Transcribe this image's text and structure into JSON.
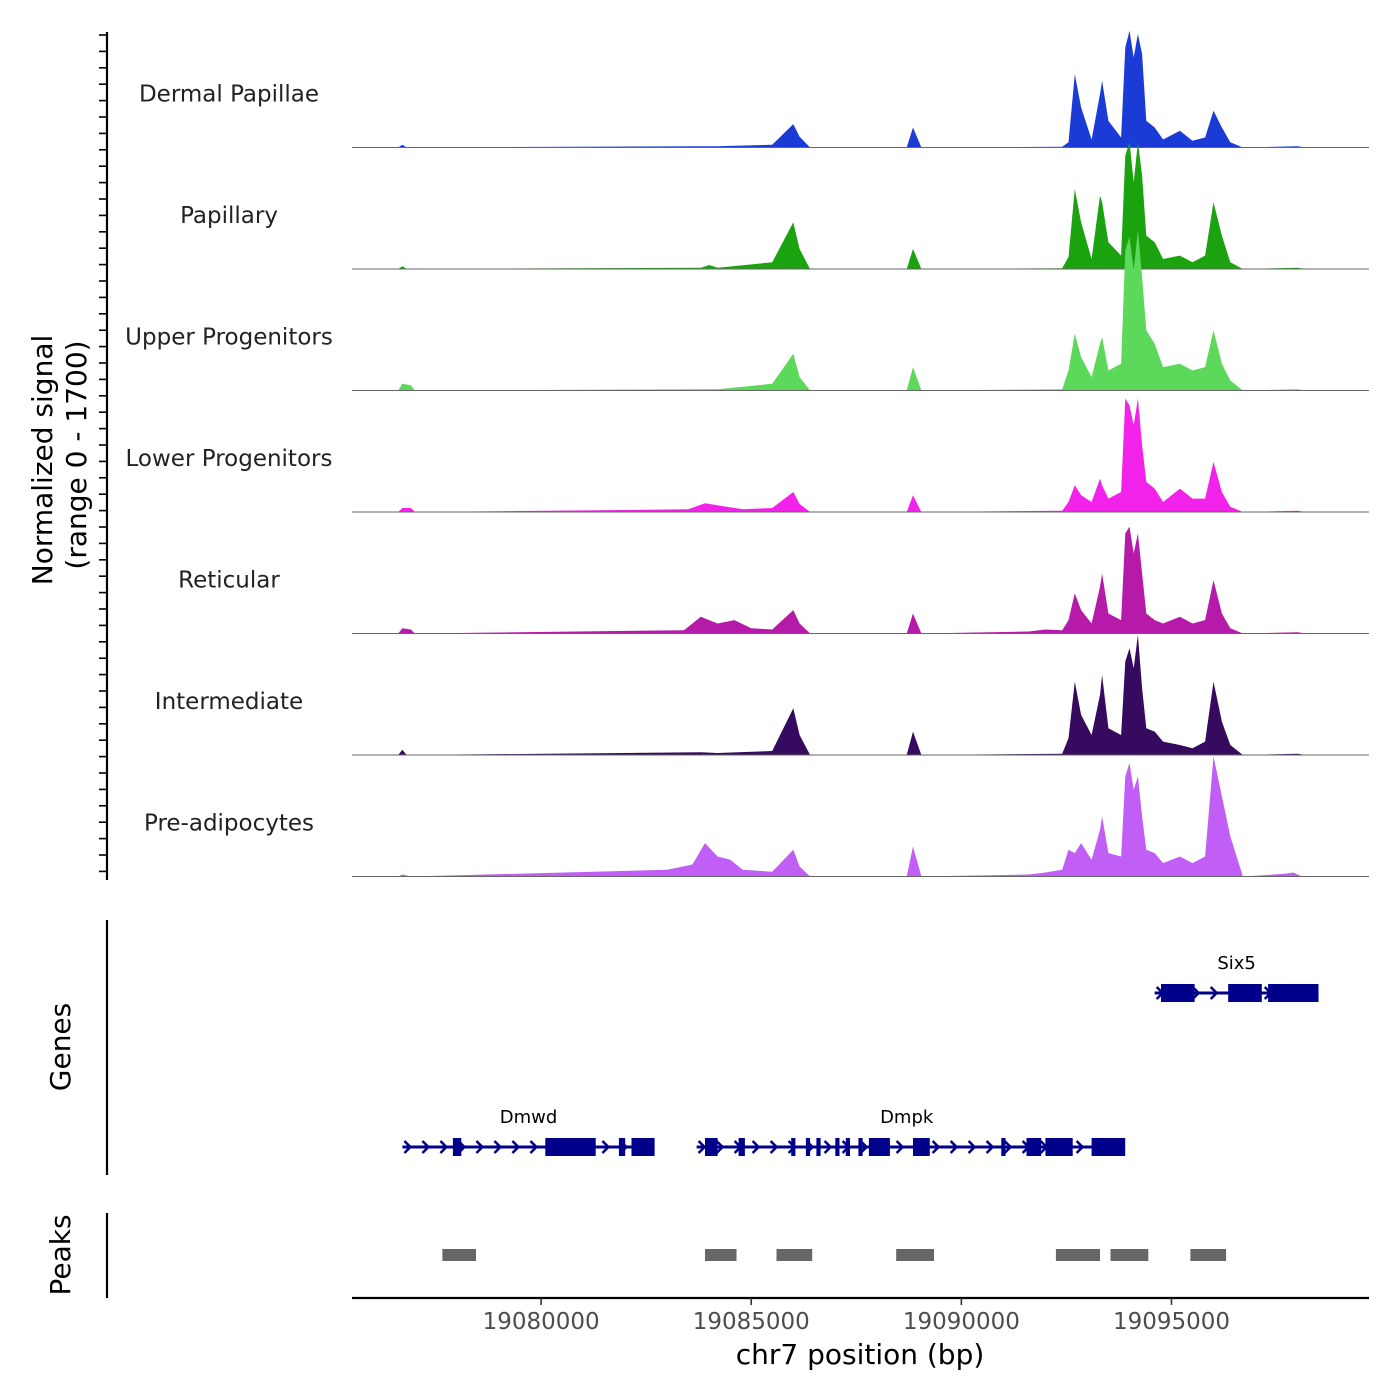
{
  "chart_data": {
    "type": "area",
    "chromosome": "chr7",
    "xlabel": "chr7 position (bp)",
    "xlim": [
      19075500,
      19099700
    ],
    "x_ticks": [
      19080000,
      19085000,
      19090000,
      19095000
    ],
    "x_tick_labels": [
      "19080000",
      "19085000",
      "19090000",
      "19095000"
    ],
    "coverage": {
      "ylabel_line1": "Normalized signal",
      "ylabel_line2": "(range 0 - 1700)",
      "y_range": [
        0,
        1700
      ],
      "tracks": [
        {
          "name": "Dermal Papillae",
          "color": "#1a3bd6",
          "x": [
            19076600,
            19076700,
            19076800,
            19083800,
            19084200,
            19085500,
            19086000,
            19086150,
            19086400,
            19088700,
            19088850,
            19089050,
            19092400,
            19092550,
            19092700,
            19092850,
            19093100,
            19093300,
            19093350,
            19093500,
            19093800,
            19093900,
            19094000,
            19094100,
            19094200,
            19094300,
            19094400,
            19094600,
            19094800,
            19095200,
            19095500,
            19095800,
            19096000,
            19096200,
            19096400,
            19096700,
            19098000,
            19098200
          ],
          "values": [
            0,
            40,
            0,
            20,
            20,
            40,
            350,
            160,
            0,
            0,
            300,
            0,
            10,
            80,
            1100,
            600,
            120,
            800,
            1000,
            400,
            150,
            1500,
            1750,
            1350,
            1700,
            1400,
            400,
            300,
            120,
            250,
            100,
            150,
            550,
            300,
            80,
            0,
            20,
            0
          ]
        },
        {
          "name": "Papillary",
          "color": "#1aa20f",
          "x": [
            19076600,
            19076700,
            19076800,
            19083800,
            19084000,
            19084200,
            19085500,
            19086000,
            19086150,
            19086400,
            19088700,
            19088850,
            19089050,
            19092400,
            19092550,
            19092700,
            19092850,
            19093100,
            19093300,
            19093350,
            19093500,
            19093800,
            19093900,
            19094000,
            19094100,
            19094200,
            19094300,
            19094400,
            19094600,
            19094800,
            19095200,
            19095500,
            19095800,
            19096000,
            19096200,
            19096400,
            19096700,
            19098000,
            19098200
          ],
          "values": [
            0,
            40,
            0,
            20,
            60,
            20,
            100,
            700,
            300,
            0,
            0,
            300,
            0,
            10,
            180,
            1200,
            700,
            150,
            1100,
            1000,
            400,
            200,
            1700,
            1900,
            1300,
            1900,
            1400,
            500,
            400,
            150,
            200,
            100,
            200,
            1000,
            500,
            100,
            0,
            20,
            0
          ]
        },
        {
          "name": "Upper Progenitors",
          "color": "#5cd85a",
          "x": [
            19076600,
            19076700,
            19076900,
            19077000,
            19083800,
            19084200,
            19085500,
            19086000,
            19086150,
            19086400,
            19088700,
            19088850,
            19089050,
            19092400,
            19092550,
            19092700,
            19092850,
            19093100,
            19093300,
            19093350,
            19093500,
            19093800,
            19093900,
            19094000,
            19094100,
            19094200,
            19094300,
            19094400,
            19094600,
            19094800,
            19095200,
            19095500,
            19095800,
            19096000,
            19096200,
            19096400,
            19096700,
            19098000,
            19098200
          ],
          "values": [
            0,
            100,
            80,
            0,
            20,
            20,
            100,
            550,
            200,
            0,
            0,
            350,
            0,
            20,
            300,
            850,
            500,
            200,
            700,
            800,
            300,
            400,
            2100,
            2300,
            1800,
            2400,
            1700,
            900,
            700,
            350,
            400,
            300,
            350,
            900,
            400,
            150,
            0,
            20,
            0
          ]
        },
        {
          "name": "Lower Progenitors",
          "color": "#f222ea",
          "x": [
            19076600,
            19076700,
            19076900,
            19077000,
            19083500,
            19083900,
            19084300,
            19084800,
            19085500,
            19086000,
            19086150,
            19086400,
            19088700,
            19088850,
            19089050,
            19092400,
            19092550,
            19092700,
            19092850,
            19093100,
            19093300,
            19093350,
            19093500,
            19093800,
            19093900,
            19094000,
            19094100,
            19094200,
            19094300,
            19094400,
            19094600,
            19094800,
            19095200,
            19095500,
            19095800,
            19096000,
            19096200,
            19096400,
            19096700,
            19098000,
            19098200
          ],
          "values": [
            0,
            60,
            60,
            0,
            40,
            130,
            90,
            40,
            60,
            300,
            120,
            0,
            0,
            250,
            0,
            20,
            150,
            400,
            250,
            150,
            500,
            400,
            200,
            300,
            1700,
            1600,
            1300,
            1700,
            1000,
            450,
            350,
            150,
            350,
            200,
            200,
            750,
            300,
            80,
            0,
            20,
            0
          ]
        },
        {
          "name": "Reticular",
          "color": "#b51aa8",
          "x": [
            19076600,
            19076700,
            19076900,
            19077000,
            19083400,
            19083800,
            19084200,
            19084600,
            19085000,
            19085500,
            19086000,
            19086150,
            19086400,
            19088700,
            19088850,
            19089050,
            19091600,
            19092000,
            19092400,
            19092550,
            19092700,
            19092850,
            19093100,
            19093300,
            19093350,
            19093500,
            19093800,
            19093900,
            19094000,
            19094100,
            19094200,
            19094300,
            19094400,
            19094600,
            19094800,
            19095200,
            19095500,
            19095800,
            19096000,
            19096200,
            19096400,
            19096700,
            19098000,
            19098200
          ],
          "values": [
            0,
            80,
            60,
            0,
            50,
            250,
            150,
            200,
            80,
            60,
            350,
            150,
            0,
            0,
            300,
            0,
            30,
            60,
            50,
            200,
            600,
            350,
            150,
            700,
            900,
            300,
            200,
            1500,
            1600,
            1200,
            1500,
            900,
            300,
            200,
            150,
            250,
            150,
            200,
            800,
            300,
            80,
            0,
            20,
            0
          ]
        },
        {
          "name": "Intermediate",
          "color": "#360a5e",
          "x": [
            19076600,
            19076700,
            19076800,
            19083800,
            19084200,
            19085500,
            19086000,
            19086150,
            19086400,
            19088700,
            19088850,
            19089050,
            19092400,
            19092550,
            19092700,
            19092850,
            19093100,
            19093300,
            19093350,
            19093500,
            19093800,
            19093900,
            19094000,
            19094100,
            19094200,
            19094300,
            19094400,
            19094600,
            19094800,
            19095200,
            19095500,
            19095800,
            19096000,
            19096200,
            19096400,
            19096700,
            19098000,
            19098200
          ],
          "values": [
            0,
            80,
            0,
            40,
            30,
            60,
            700,
            300,
            0,
            0,
            350,
            0,
            20,
            250,
            1100,
            600,
            300,
            900,
            1200,
            400,
            300,
            1400,
            1600,
            1300,
            1800,
            1000,
            400,
            350,
            200,
            150,
            100,
            200,
            1100,
            500,
            150,
            0,
            20,
            0
          ]
        },
        {
          "name": "Pre-adipocytes",
          "color": "#c15ef5",
          "x": [
            19076600,
            19076700,
            19076900,
            19083000,
            19083600,
            19083900,
            19084200,
            19084500,
            19084800,
            19085500,
            19086000,
            19086150,
            19086400,
            19088700,
            19088850,
            19089050,
            19091600,
            19092000,
            19092400,
            19092550,
            19092700,
            19092850,
            19093100,
            19093300,
            19093350,
            19093500,
            19093800,
            19093900,
            19094000,
            19094100,
            19094200,
            19094300,
            19094400,
            19094600,
            19094800,
            19095200,
            19095500,
            19095800,
            19096000,
            19096200,
            19096400,
            19096700,
            19097700,
            19097900,
            19098100
          ],
          "values": [
            0,
            30,
            0,
            100,
            180,
            500,
            300,
            250,
            100,
            70,
            400,
            150,
            0,
            0,
            450,
            0,
            30,
            60,
            100,
            400,
            350,
            500,
            250,
            700,
            900,
            350,
            300,
            1500,
            1700,
            1300,
            1500,
            900,
            400,
            350,
            200,
            300,
            200,
            300,
            1800,
            1200,
            600,
            0,
            40,
            60,
            0
          ]
        }
      ]
    },
    "genes": {
      "panel_label": "Genes",
      "color": "#00008b",
      "list": [
        {
          "name": "Dmwd",
          "strand": "+",
          "start": 19076700,
          "end": 19082700,
          "exons": [
            [
              19077900,
              19078100
            ],
            [
              19080100,
              19081300
            ],
            [
              19081850,
              19082000
            ],
            [
              19082150,
              19082700
            ]
          ]
        },
        {
          "name": "Dmpk",
          "strand": "+",
          "start": 19083700,
          "end": 19093700,
          "exons": [
            [
              19083900,
              19084200
            ],
            [
              19084700,
              19084850
            ],
            [
              19085950,
              19086050
            ],
            [
              19086300,
              19086400
            ],
            [
              19086550,
              19086650
            ],
            [
              19087000,
              19087100
            ],
            [
              19087250,
              19087350
            ],
            [
              19087550,
              19087650
            ],
            [
              19087800,
              19088300
            ],
            [
              19088850,
              19089250
            ],
            [
              19090950,
              19091050
            ],
            [
              19091550,
              19091900
            ],
            [
              19092000,
              19092650
            ],
            [
              19093100,
              19093900
            ]
          ]
        },
        {
          "name": "Six5",
          "strand": "+",
          "start": 19094600,
          "end": 19098500,
          "exons": [
            [
              19094750,
              19095550
            ],
            [
              19096350,
              19097150
            ],
            [
              19097300,
              19098500
            ]
          ]
        }
      ]
    },
    "peaks": {
      "panel_label": "Peaks",
      "color": "#666666",
      "ranges": [
        [
          19077650,
          19078450
        ],
        [
          19083900,
          19084650
        ],
        [
          19085600,
          19086450
        ],
        [
          19088450,
          19089350
        ],
        [
          19092250,
          19093300
        ],
        [
          19093550,
          19094450
        ],
        [
          19095450,
          19096300
        ]
      ]
    }
  }
}
